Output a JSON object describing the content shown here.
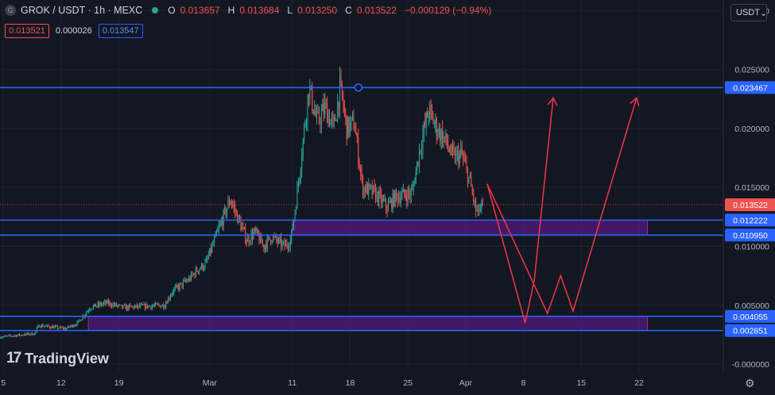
{
  "header": {
    "logo_letter": "G",
    "symbol": "GROK / USDT · 1h · MEXC",
    "ohlc": [
      {
        "k": "O",
        "v": "0.013657"
      },
      {
        "k": "H",
        "v": "0.013684"
      },
      {
        "k": "L",
        "v": "0.013250"
      },
      {
        "k": "C",
        "v": "0.013522"
      },
      {
        "k": "",
        "v": "−0.000129 (−0.94%)"
      }
    ],
    "bid": "0.013521",
    "spread": "0.000026",
    "ask": "0.013547",
    "currency": "USDT"
  },
  "brand": {
    "name": "TradingView"
  },
  "colors": {
    "up": "#26a69a",
    "down": "#ef5350",
    "line": "#2962ff",
    "zone": "#6a1b9a",
    "arrow": "#f23645"
  },
  "chart_data": {
    "type": "candlestick",
    "y_ticks": [
      "0.030000",
      "0.025000",
      "0.020000",
      "0.015000",
      "0.010000",
      "0.005000",
      "-0.000000"
    ],
    "y_tick_values": [
      0.03,
      0.025,
      0.02,
      0.015,
      0.01,
      0.005,
      0.0
    ],
    "ylim": [
      -0.0006,
      0.0309
    ],
    "x_ticks": [
      "5",
      "12",
      "19",
      "Mar",
      "11",
      "18",
      "25",
      "Apr",
      "8",
      "15",
      "22"
    ],
    "x_tick_days": [
      4,
      11,
      18,
      29,
      39,
      46,
      53,
      60,
      67,
      74,
      81
    ],
    "xlim": [
      3.6,
      91.2
    ],
    "price_path": [
      [
        3.6,
        0.0023
      ],
      [
        7.8,
        0.0026
      ],
      [
        8.3,
        0.0033
      ],
      [
        11.5,
        0.003
      ],
      [
        13.0,
        0.0035
      ],
      [
        14.5,
        0.0048
      ],
      [
        16.5,
        0.0052
      ],
      [
        18.5,
        0.0048
      ],
      [
        23.5,
        0.005
      ],
      [
        24.5,
        0.0062
      ],
      [
        26.5,
        0.0072
      ],
      [
        27.5,
        0.008
      ],
      [
        28.5,
        0.0085
      ],
      [
        30.5,
        0.0122
      ],
      [
        31.5,
        0.014
      ],
      [
        32.5,
        0.0122
      ],
      [
        33.5,
        0.0105
      ],
      [
        34.5,
        0.0112
      ],
      [
        35.5,
        0.01
      ],
      [
        36.5,
        0.0108
      ],
      [
        38.0,
        0.01
      ],
      [
        38.8,
        0.0105
      ],
      [
        39.5,
        0.014
      ],
      [
        40.3,
        0.019
      ],
      [
        41.0,
        0.0235
      ],
      [
        42.0,
        0.0205
      ],
      [
        43.0,
        0.0218
      ],
      [
        44.0,
        0.02
      ],
      [
        44.8,
        0.0235
      ],
      [
        45.6,
        0.02
      ],
      [
        46.5,
        0.0205
      ],
      [
        47.5,
        0.015
      ],
      [
        49.0,
        0.0145
      ],
      [
        50.5,
        0.0133
      ],
      [
        51.5,
        0.0142
      ],
      [
        53.5,
        0.0145
      ],
      [
        54.5,
        0.0185
      ],
      [
        55.5,
        0.0215
      ],
      [
        56.5,
        0.02
      ],
      [
        57.5,
        0.019
      ],
      [
        58.5,
        0.0175
      ],
      [
        59.5,
        0.0178
      ],
      [
        60.5,
        0.0155
      ],
      [
        61.3,
        0.0128
      ],
      [
        62.2,
        0.0135
      ]
    ],
    "candle_count": 420,
    "horizontal_lines": [
      {
        "price": 0.023467,
        "label": "0.023467"
      },
      {
        "price": 0.012222,
        "label": "0.012222"
      },
      {
        "price": 0.01095,
        "label": "0.010950"
      },
      {
        "price": 0.004055,
        "label": "0.004055"
      },
      {
        "price": 0.002851,
        "label": "0.002851"
      }
    ],
    "current_price": {
      "price": 0.013522,
      "label": "0.013522"
    },
    "zones": [
      {
        "x1": 39.0,
        "x2": 82.0,
        "top": 0.012222,
        "bottom": 0.01095
      },
      {
        "x1": 14.3,
        "x2": 82.0,
        "top": 0.004055,
        "bottom": 0.002851
      }
    ],
    "anchor_marker": {
      "x": 47.0,
      "price": 0.023467
    },
    "projection_paths": [
      [
        [
          62.6,
          0.0153
        ],
        [
          67.2,
          0.0035
        ],
        [
          68.3,
          0.0071
        ],
        [
          70.6,
          0.0226
        ]
      ],
      [
        [
          62.6,
          0.0153
        ],
        [
          69.9,
          0.0043
        ],
        [
          71.5,
          0.0075
        ],
        [
          73.0,
          0.0045
        ],
        [
          80.7,
          0.0226
        ]
      ]
    ],
    "grid": true,
    "legend": "none"
  }
}
